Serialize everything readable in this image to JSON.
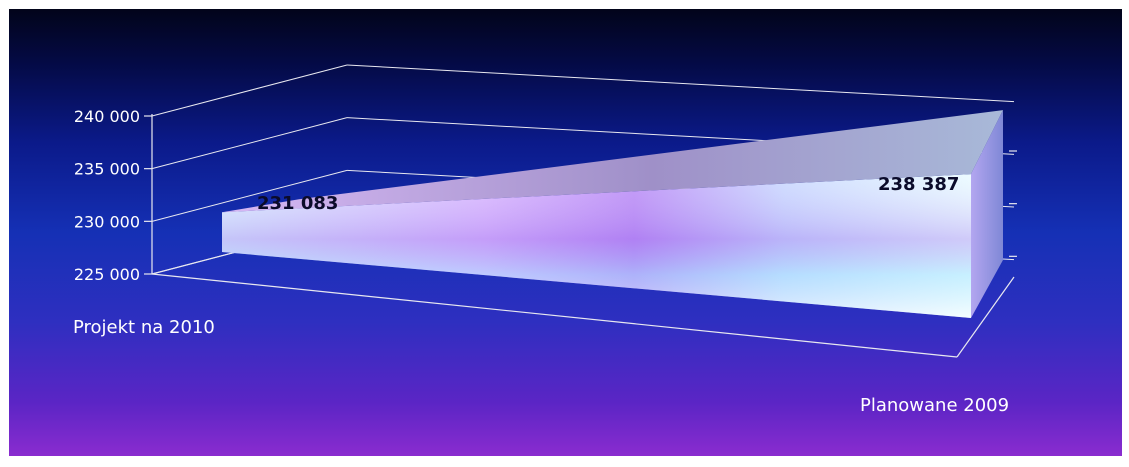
{
  "chart_data": {
    "type": "area",
    "style": "3d",
    "categories": [
      "Projekt na 2010",
      "Planowane 2009"
    ],
    "values": [
      231083,
      238387
    ],
    "data_labels": [
      "231 083",
      "238 387"
    ],
    "y_ticks": [
      "225 000",
      "230 000",
      "235 000",
      "240 000"
    ],
    "y_tick_values": [
      225000,
      230000,
      235000,
      240000
    ],
    "ylim": [
      225000,
      240000
    ],
    "title": "",
    "xlabel": "",
    "ylabel": "",
    "grid": true,
    "legend": "none",
    "colors": {
      "background_top": "#02041a",
      "background_bottom": "#8a2ccf",
      "front_light": "#c8f0ff",
      "front_purple": "#c58cf5",
      "top_face": "#b8a8e0",
      "side_face": "#9db4e8"
    }
  }
}
